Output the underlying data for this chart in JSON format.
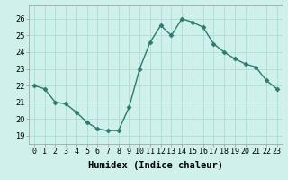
{
  "x": [
    0,
    1,
    2,
    3,
    4,
    5,
    6,
    7,
    8,
    9,
    10,
    11,
    12,
    13,
    14,
    15,
    16,
    17,
    18,
    19,
    20,
    21,
    22,
    23
  ],
  "y": [
    22.0,
    21.8,
    21.0,
    20.9,
    20.4,
    19.8,
    19.4,
    19.3,
    19.3,
    20.7,
    23.0,
    24.6,
    25.6,
    25.0,
    26.0,
    25.8,
    25.5,
    24.5,
    24.0,
    23.6,
    23.3,
    23.1,
    22.3,
    21.8
  ],
  "line_color": "#2d7a6e",
  "bg_color": "#cff0eb",
  "grid_color": "#aaddda",
  "xlabel": "Humidex (Indice chaleur)",
  "ylim": [
    18.5,
    26.8
  ],
  "yticks": [
    19,
    20,
    21,
    22,
    23,
    24,
    25,
    26
  ],
  "xtick_labels": [
    "0",
    "1",
    "2",
    "3",
    "4",
    "5",
    "6",
    "7",
    "8",
    "9",
    "10",
    "11",
    "12",
    "13",
    "14",
    "15",
    "16",
    "17",
    "18",
    "19",
    "20",
    "21",
    "22",
    "23"
  ],
  "marker": "D",
  "markersize": 2.5,
  "linewidth": 1.0,
  "xlabel_fontsize": 7.5,
  "tick_fontsize": 6.0
}
